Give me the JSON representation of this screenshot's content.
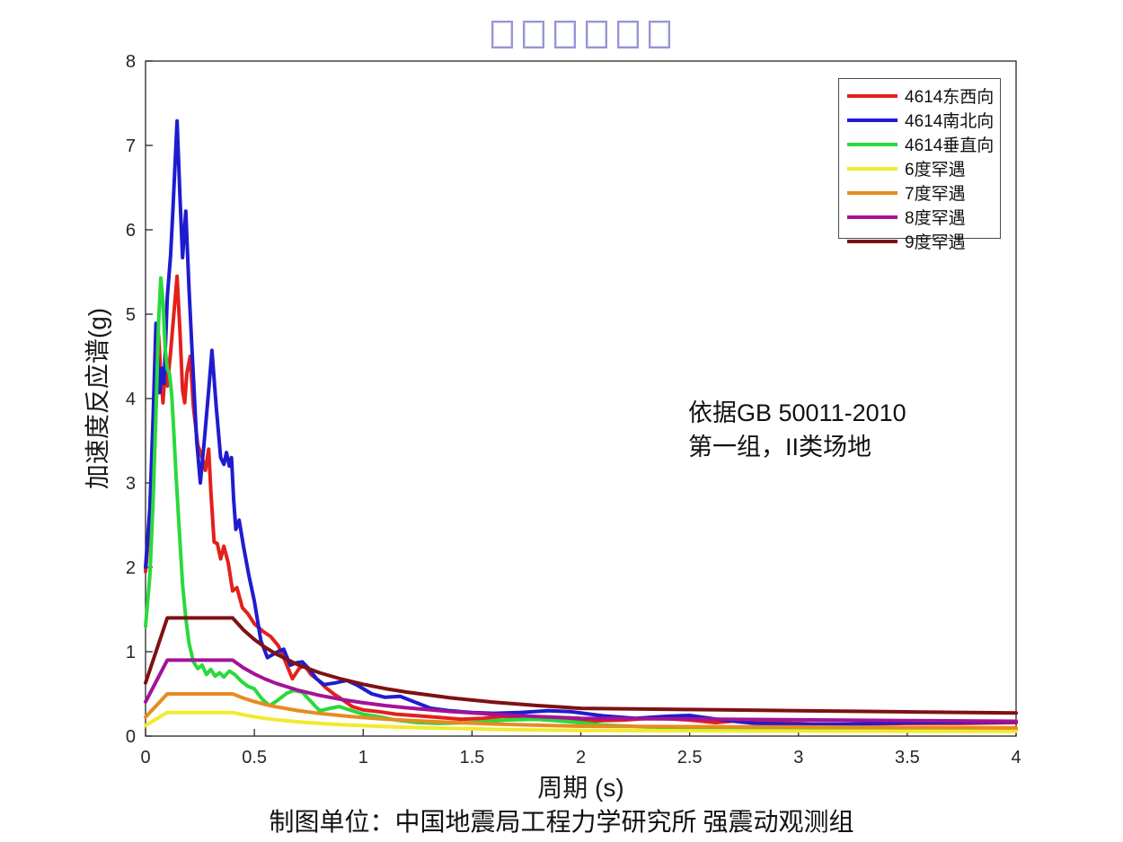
{
  "title": {
    "missing_glyph_boxes": 6,
    "box_color": "#9595d5"
  },
  "annotation": {
    "line1": "依据GB 50011-2010",
    "line2": "第一组，II类场地"
  },
  "caption": "制图单位：中国地震局工程力学研究所 强震动观测组",
  "chart_data": {
    "type": "line",
    "xlabel": "周期 (s)",
    "ylabel": "加速度反应谱(g)",
    "xlim": [
      0,
      4
    ],
    "ylim": [
      0,
      8
    ],
    "x_ticks": [
      0,
      0.5,
      1,
      1.5,
      2,
      2.5,
      3,
      3.5,
      4
    ],
    "x_tick_labels": [
      "0",
      "0.5",
      "1",
      "1.5",
      "2",
      "2.5",
      "3",
      "3.5",
      "4"
    ],
    "y_ticks": [
      0,
      1,
      2,
      3,
      4,
      5,
      6,
      7,
      8
    ],
    "y_tick_labels": [
      "0",
      "1",
      "2",
      "3",
      "4",
      "5",
      "6",
      "7",
      "8"
    ],
    "grid": false,
    "legend_position": "top-right",
    "axis_color": "#262626",
    "series": [
      {
        "name": "4614东西向",
        "color": "#e3201b",
        "points": [
          [
            0,
            1.95
          ],
          [
            0.02,
            2.55
          ],
          [
            0.035,
            3.3
          ],
          [
            0.05,
            4.0
          ],
          [
            0.06,
            4.75
          ],
          [
            0.07,
            4.3
          ],
          [
            0.08,
            3.95
          ],
          [
            0.09,
            4.35
          ],
          [
            0.1,
            4.15
          ],
          [
            0.115,
            4.55
          ],
          [
            0.13,
            5.0
          ],
          [
            0.145,
            5.45
          ],
          [
            0.158,
            4.8
          ],
          [
            0.17,
            4.1
          ],
          [
            0.18,
            3.95
          ],
          [
            0.19,
            4.3
          ],
          [
            0.205,
            4.5
          ],
          [
            0.22,
            3.9
          ],
          [
            0.24,
            3.45
          ],
          [
            0.26,
            3.3
          ],
          [
            0.275,
            3.15
          ],
          [
            0.29,
            3.4
          ],
          [
            0.3,
            2.9
          ],
          [
            0.315,
            2.3
          ],
          [
            0.33,
            2.28
          ],
          [
            0.345,
            2.1
          ],
          [
            0.36,
            2.25
          ],
          [
            0.38,
            2.05
          ],
          [
            0.4,
            1.72
          ],
          [
            0.42,
            1.76
          ],
          [
            0.445,
            1.52
          ],
          [
            0.47,
            1.45
          ],
          [
            0.5,
            1.33
          ],
          [
            0.54,
            1.24
          ],
          [
            0.575,
            1.18
          ],
          [
            0.61,
            1.07
          ],
          [
            0.64,
            0.9
          ],
          [
            0.675,
            0.68
          ],
          [
            0.705,
            0.8
          ],
          [
            0.73,
            0.84
          ],
          [
            0.76,
            0.73
          ],
          [
            0.79,
            0.67
          ],
          [
            0.83,
            0.57
          ],
          [
            0.865,
            0.5
          ],
          [
            0.9,
            0.44
          ],
          [
            0.95,
            0.35
          ],
          [
            1.0,
            0.31
          ],
          [
            1.07,
            0.29
          ],
          [
            1.15,
            0.26
          ],
          [
            1.25,
            0.24
          ],
          [
            1.35,
            0.22
          ],
          [
            1.45,
            0.2
          ],
          [
            1.55,
            0.21
          ],
          [
            1.65,
            0.235
          ],
          [
            1.75,
            0.21
          ],
          [
            1.85,
            0.19
          ],
          [
            1.95,
            0.18
          ],
          [
            2.05,
            0.18
          ],
          [
            2.2,
            0.19
          ],
          [
            2.34,
            0.215
          ],
          [
            2.5,
            0.19
          ],
          [
            2.62,
            0.16
          ],
          [
            2.75,
            0.19
          ],
          [
            2.9,
            0.16
          ],
          [
            3.05,
            0.145
          ],
          [
            3.25,
            0.14
          ],
          [
            3.5,
            0.15
          ],
          [
            3.75,
            0.15
          ],
          [
            4.0,
            0.16
          ]
        ]
      },
      {
        "name": "4614南北向",
        "color": "#1f1ccf",
        "points": [
          [
            0,
            2.0
          ],
          [
            0.02,
            2.7
          ],
          [
            0.035,
            3.8
          ],
          [
            0.048,
            4.89
          ],
          [
            0.058,
            4.4
          ],
          [
            0.065,
            4.07
          ],
          [
            0.075,
            4.36
          ],
          [
            0.085,
            4.18
          ],
          [
            0.1,
            5.2
          ],
          [
            0.115,
            5.7
          ],
          [
            0.125,
            6.2
          ],
          [
            0.145,
            7.29
          ],
          [
            0.158,
            6.4
          ],
          [
            0.17,
            5.67
          ],
          [
            0.185,
            6.22
          ],
          [
            0.2,
            5.3
          ],
          [
            0.215,
            4.5
          ],
          [
            0.235,
            3.5
          ],
          [
            0.252,
            3.0
          ],
          [
            0.27,
            3.5
          ],
          [
            0.29,
            4.1
          ],
          [
            0.305,
            4.57
          ],
          [
            0.325,
            3.9
          ],
          [
            0.345,
            3.3
          ],
          [
            0.36,
            3.22
          ],
          [
            0.372,
            3.36
          ],
          [
            0.385,
            3.2
          ],
          [
            0.395,
            3.3
          ],
          [
            0.405,
            2.8
          ],
          [
            0.415,
            2.45
          ],
          [
            0.43,
            2.56
          ],
          [
            0.45,
            2.25
          ],
          [
            0.475,
            1.9
          ],
          [
            0.5,
            1.6
          ],
          [
            0.53,
            1.13
          ],
          [
            0.56,
            0.93
          ],
          [
            0.6,
            0.99
          ],
          [
            0.635,
            1.03
          ],
          [
            0.665,
            0.84
          ],
          [
            0.695,
            0.87
          ],
          [
            0.72,
            0.88
          ],
          [
            0.75,
            0.8
          ],
          [
            0.785,
            0.68
          ],
          [
            0.82,
            0.61
          ],
          [
            0.87,
            0.63
          ],
          [
            0.925,
            0.66
          ],
          [
            0.975,
            0.6
          ],
          [
            1.04,
            0.5
          ],
          [
            1.1,
            0.46
          ],
          [
            1.17,
            0.47
          ],
          [
            1.24,
            0.4
          ],
          [
            1.31,
            0.33
          ],
          [
            1.4,
            0.3
          ],
          [
            1.5,
            0.28
          ],
          [
            1.6,
            0.27
          ],
          [
            1.72,
            0.28
          ],
          [
            1.85,
            0.3
          ],
          [
            1.95,
            0.29
          ],
          [
            2.1,
            0.24
          ],
          [
            2.25,
            0.21
          ],
          [
            2.4,
            0.235
          ],
          [
            2.5,
            0.245
          ],
          [
            2.65,
            0.19
          ],
          [
            2.8,
            0.15
          ],
          [
            3.0,
            0.14
          ],
          [
            3.2,
            0.14
          ],
          [
            3.5,
            0.16
          ],
          [
            3.75,
            0.165
          ],
          [
            4.0,
            0.17
          ]
        ]
      },
      {
        "name": "4614垂直向",
        "color": "#2ad93c",
        "points": [
          [
            0,
            1.3
          ],
          [
            0.02,
            1.9
          ],
          [
            0.035,
            2.8
          ],
          [
            0.05,
            4.0
          ],
          [
            0.06,
            4.9
          ],
          [
            0.07,
            5.43
          ],
          [
            0.08,
            5.15
          ],
          [
            0.09,
            4.6
          ],
          [
            0.1,
            4.35
          ],
          [
            0.11,
            4.3
          ],
          [
            0.12,
            4.05
          ],
          [
            0.13,
            3.6
          ],
          [
            0.14,
            3.1
          ],
          [
            0.155,
            2.45
          ],
          [
            0.17,
            1.8
          ],
          [
            0.185,
            1.4
          ],
          [
            0.2,
            1.1
          ],
          [
            0.22,
            0.88
          ],
          [
            0.24,
            0.8
          ],
          [
            0.26,
            0.84
          ],
          [
            0.28,
            0.73
          ],
          [
            0.3,
            0.79
          ],
          [
            0.32,
            0.71
          ],
          [
            0.34,
            0.75
          ],
          [
            0.36,
            0.7
          ],
          [
            0.385,
            0.77
          ],
          [
            0.41,
            0.73
          ],
          [
            0.44,
            0.65
          ],
          [
            0.47,
            0.59
          ],
          [
            0.5,
            0.56
          ],
          [
            0.535,
            0.44
          ],
          [
            0.57,
            0.36
          ],
          [
            0.61,
            0.43
          ],
          [
            0.65,
            0.51
          ],
          [
            0.68,
            0.54
          ],
          [
            0.72,
            0.52
          ],
          [
            0.76,
            0.41
          ],
          [
            0.8,
            0.3
          ],
          [
            0.85,
            0.33
          ],
          [
            0.89,
            0.35
          ],
          [
            0.95,
            0.3
          ],
          [
            1.0,
            0.26
          ],
          [
            1.07,
            0.23
          ],
          [
            1.15,
            0.19
          ],
          [
            1.25,
            0.16
          ],
          [
            1.35,
            0.15
          ],
          [
            1.5,
            0.16
          ],
          [
            1.65,
            0.19
          ],
          [
            1.8,
            0.2
          ],
          [
            1.95,
            0.17
          ],
          [
            2.1,
            0.13
          ],
          [
            2.3,
            0.11
          ],
          [
            2.5,
            0.1
          ],
          [
            2.8,
            0.09
          ],
          [
            3.1,
            0.08
          ],
          [
            3.5,
            0.075
          ],
          [
            4.0,
            0.07
          ]
        ]
      },
      {
        "name": "6度罕遇",
        "color": "#f2ea2e",
        "points": [
          [
            0,
            0.126
          ],
          [
            0.1,
            0.28
          ],
          [
            0.4,
            0.28
          ],
          [
            0.45,
            0.252
          ],
          [
            0.5,
            0.229
          ],
          [
            0.55,
            0.21
          ],
          [
            0.6,
            0.194
          ],
          [
            0.7,
            0.169
          ],
          [
            0.8,
            0.15
          ],
          [
            0.9,
            0.135
          ],
          [
            1.0,
            0.123
          ],
          [
            1.1,
            0.113
          ],
          [
            1.2,
            0.104
          ],
          [
            1.4,
            0.091
          ],
          [
            1.6,
            0.08
          ],
          [
            1.8,
            0.072
          ],
          [
            2.0,
            0.066
          ],
          [
            2.5,
            0.063
          ],
          [
            3.0,
            0.06
          ],
          [
            3.5,
            0.057
          ],
          [
            4.0,
            0.055
          ]
        ]
      },
      {
        "name": "7度罕遇",
        "color": "#e78c20",
        "points": [
          [
            0,
            0.225
          ],
          [
            0.1,
            0.5
          ],
          [
            0.4,
            0.5
          ],
          [
            0.45,
            0.45
          ],
          [
            0.5,
            0.409
          ],
          [
            0.55,
            0.375
          ],
          [
            0.6,
            0.347
          ],
          [
            0.7,
            0.302
          ],
          [
            0.8,
            0.268
          ],
          [
            0.9,
            0.241
          ],
          [
            1.0,
            0.219
          ],
          [
            1.1,
            0.201
          ],
          [
            1.2,
            0.186
          ],
          [
            1.4,
            0.162
          ],
          [
            1.6,
            0.144
          ],
          [
            1.8,
            0.129
          ],
          [
            2.0,
            0.117
          ],
          [
            2.5,
            0.112
          ],
          [
            3.0,
            0.107
          ],
          [
            3.5,
            0.102
          ],
          [
            4.0,
            0.097
          ]
        ]
      },
      {
        "name": "8度罕遇",
        "color": "#a51296",
        "points": [
          [
            0,
            0.405
          ],
          [
            0.1,
            0.9
          ],
          [
            0.4,
            0.9
          ],
          [
            0.45,
            0.809
          ],
          [
            0.5,
            0.736
          ],
          [
            0.55,
            0.676
          ],
          [
            0.6,
            0.625
          ],
          [
            0.7,
            0.544
          ],
          [
            0.8,
            0.482
          ],
          [
            0.9,
            0.434
          ],
          [
            1.0,
            0.395
          ],
          [
            1.1,
            0.362
          ],
          [
            1.2,
            0.335
          ],
          [
            1.4,
            0.291
          ],
          [
            1.6,
            0.258
          ],
          [
            1.8,
            0.232
          ],
          [
            2.0,
            0.211
          ],
          [
            2.5,
            0.202
          ],
          [
            3.0,
            0.193
          ],
          [
            3.5,
            0.184
          ],
          [
            4.0,
            0.175
          ]
        ]
      },
      {
        "name": "9度罕遇",
        "color": "#7e1112",
        "points": [
          [
            0,
            0.63
          ],
          [
            0.1,
            1.4
          ],
          [
            0.4,
            1.4
          ],
          [
            0.45,
            1.259
          ],
          [
            0.5,
            1.145
          ],
          [
            0.55,
            1.051
          ],
          [
            0.6,
            0.972
          ],
          [
            0.7,
            0.846
          ],
          [
            0.8,
            0.75
          ],
          [
            0.9,
            0.675
          ],
          [
            1.0,
            0.614
          ],
          [
            1.1,
            0.563
          ],
          [
            1.2,
            0.521
          ],
          [
            1.4,
            0.453
          ],
          [
            1.6,
            0.402
          ],
          [
            1.8,
            0.362
          ],
          [
            2.0,
            0.329
          ],
          [
            2.5,
            0.315
          ],
          [
            3.0,
            0.301
          ],
          [
            3.5,
            0.287
          ],
          [
            4.0,
            0.273
          ]
        ]
      }
    ]
  }
}
